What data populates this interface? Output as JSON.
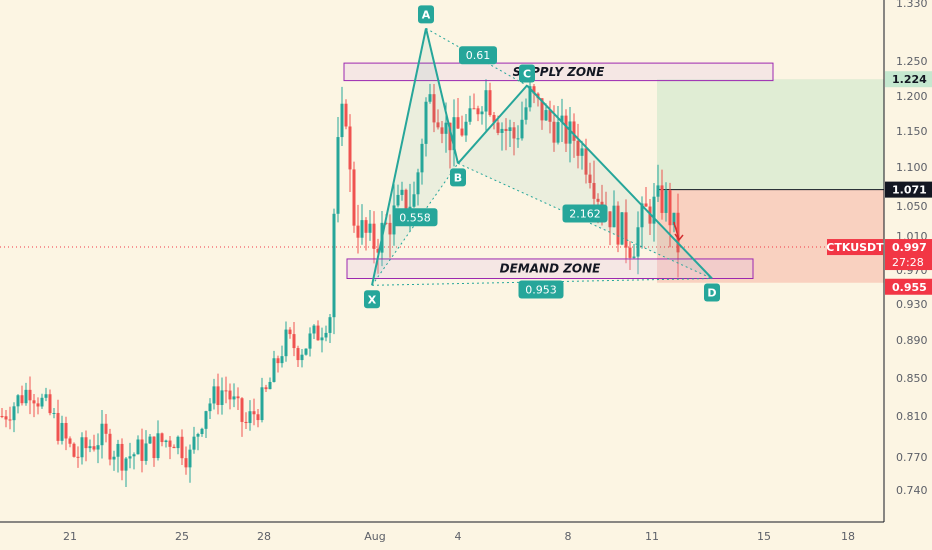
{
  "chart_data": {
    "type": "candlestick",
    "symbol": "CTKUSDT",
    "y_axis": {
      "ticks": [
        "0.740",
        "0.770",
        "0.810",
        "0.850",
        "0.890",
        "0.930",
        "0.970",
        "1.010",
        "1.050",
        "1.100",
        "1.150",
        "1.200",
        "1.250",
        "1.330"
      ],
      "ylim": [
        0.7,
        1.34
      ]
    },
    "x_axis": {
      "ticks": [
        "21",
        "25",
        "28",
        "Aug",
        "4",
        "8",
        "11",
        "15",
        "18"
      ]
    },
    "price_tags": [
      {
        "label": "1.224",
        "kind": "target",
        "color": "#c5e8cf",
        "text_color": "#131722"
      },
      {
        "label": "1.071",
        "kind": "entry",
        "color": "#131722",
        "text_color": "#ffffff"
      },
      {
        "label": "0.997",
        "kind": "last",
        "color": "#f23645",
        "text_color": "#ffffff"
      },
      {
        "label": "27:28",
        "kind": "countdown",
        "color": "#f23645",
        "text_color": "#ffffff"
      },
      {
        "label": "0.955",
        "kind": "stop",
        "color": "#f23645",
        "text_color": "#ffffff"
      }
    ],
    "symbol_tag": {
      "label": "CTKUSDT",
      "color": "#f23645"
    },
    "harmonic_pattern": {
      "points": [
        {
          "name": "X",
          "value": 0.952
        },
        {
          "name": "A",
          "value": 1.295
        },
        {
          "name": "B",
          "value": 1.105
        },
        {
          "name": "C",
          "value": 1.215
        },
        {
          "name": "D",
          "value": 0.96
        }
      ],
      "ratios": [
        "0.61",
        "0.558",
        "2.162",
        "0.953"
      ],
      "color": "#26a69a"
    },
    "zones": [
      {
        "label": "SUPPLY ZONE",
        "range": [
          1.222,
          1.247
        ]
      },
      {
        "label": "DEMAND ZONE",
        "range": [
          0.96,
          0.983
        ]
      }
    ],
    "position": {
      "entry": 1.071,
      "target": 1.224,
      "stop": 0.955
    }
  }
}
